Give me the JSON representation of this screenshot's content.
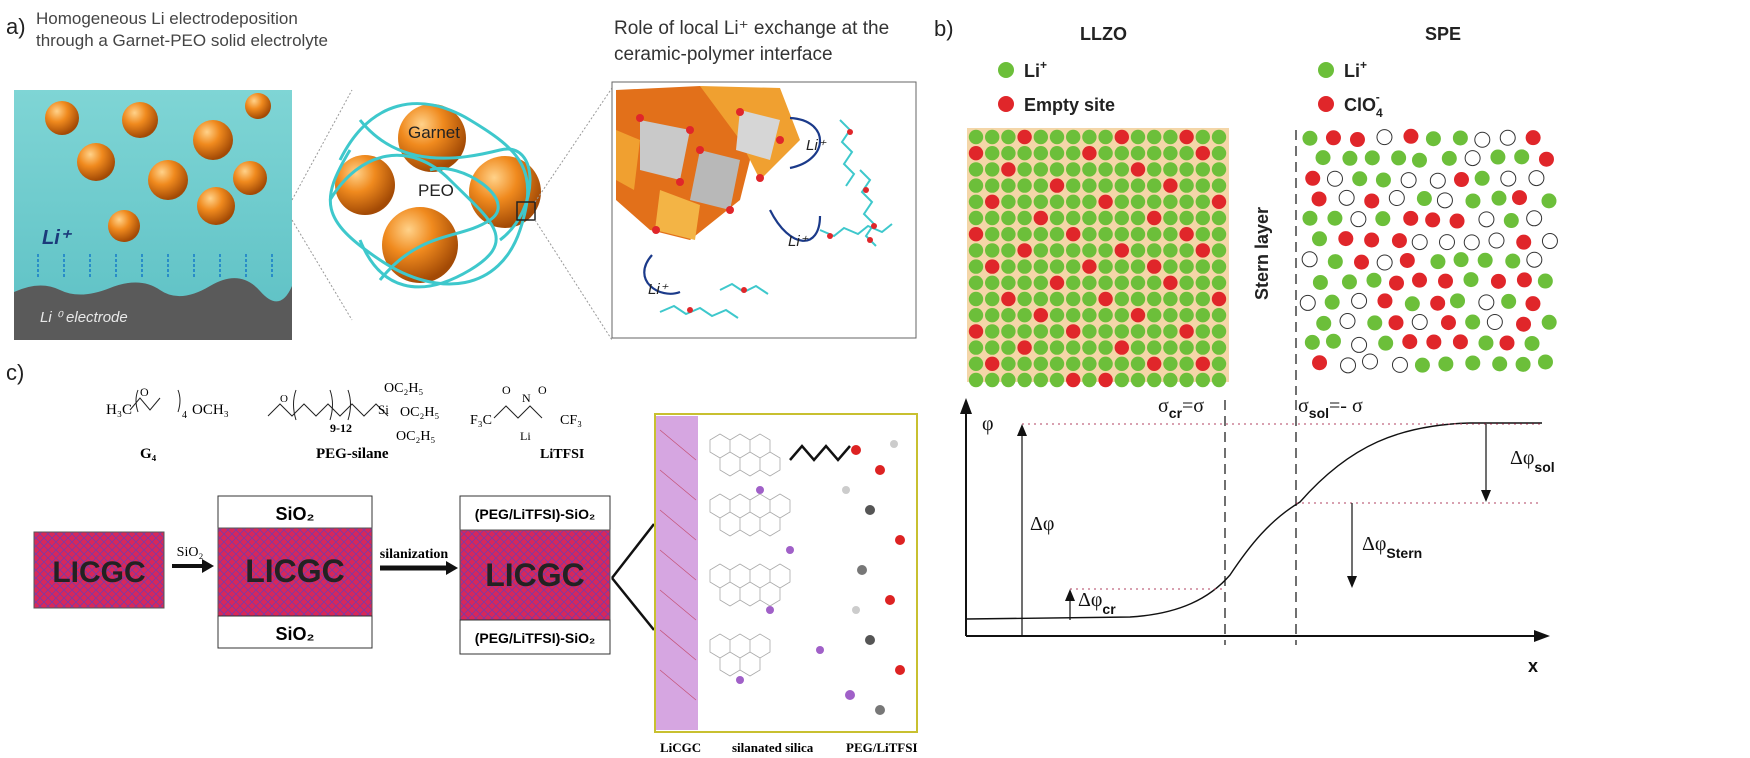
{
  "panel_a": {
    "label": "a)",
    "left_title_line1": "Homogeneous Li electrodeposition",
    "left_title_line2": "through a Garnet-PEO solid electrolyte",
    "right_title_line1": "Role of local Li⁺ exchange at the",
    "right_title_line2": "ceramic-polymer interface",
    "li_ion": "Li⁺",
    "electrode_label": "Li ⁰ electrode",
    "garnet_label": "Garnet",
    "peo_label": "PEO",
    "li_plus": "Li⁺"
  },
  "panel_b": {
    "label": "b)",
    "llzo_title": "LLZO",
    "spe_title": "SPE",
    "llzo_legend": [
      {
        "label": "Li",
        "sup": "+",
        "color": "#6cbf3a"
      },
      {
        "label": "Empty site",
        "sup": "",
        "color": "#e0262a"
      }
    ],
    "spe_legend": [
      {
        "label": "Li",
        "sup": "+",
        "color": "#6cbf3a"
      },
      {
        "label": "ClO",
        "sub": "4",
        "sup": "-",
        "color": "#e0262a"
      }
    ],
    "stern_layer": "Stern layer",
    "sigma_cr": "σ",
    "sigma_cr_sub": "cr",
    "sigma_cr_rhs": "=σ",
    "sigma_sol": "σ",
    "sigma_sol_sub": "sol",
    "sigma_sol_rhs": "=- σ",
    "phi": "φ",
    "delta_phi": "Δφ",
    "delta_phi_sol": "Δφ",
    "delta_phi_sol_sub": "sol",
    "delta_phi_stern": "Δφ",
    "delta_phi_stern_sub": "Stern",
    "delta_phi_cr": "Δφ",
    "delta_phi_cr_sub": "cr",
    "x_axis": "x",
    "colors": {
      "li": "#6cbf3a",
      "empty": "#e0262a",
      "grid_bg": "#f4d6a8"
    }
  },
  "panel_c": {
    "label": "c)",
    "g4_formula_left": "H₃C",
    "g4_formula_right": "OCH₃",
    "g4_subscript": "4",
    "g4_name": "G₄",
    "peg_silane_name": "PEG-silane",
    "peg_silane_repeat": "9-12",
    "peg_oet": [
      "OC₂H₅",
      "OC₂H₅",
      "OC₂H₅"
    ],
    "litfsi_name": "LiTFSI",
    "litfsi_cf3": "F₃C",
    "litfsi_cf3_right": "CF₃",
    "block_label": "LICGC",
    "arrow1_label": "SiO₂",
    "arrow2_label": "silanization",
    "sio2_cap": "SiO₂",
    "peg_cap": "(PEG/LiTFSI)-SiO₂",
    "zoom_labels": [
      "LiCGC",
      "silanated silica",
      "PEG/LiTFSI"
    ],
    "colors": {
      "licgc": "#d8275a",
      "mesh": "#6a3a9a"
    }
  }
}
